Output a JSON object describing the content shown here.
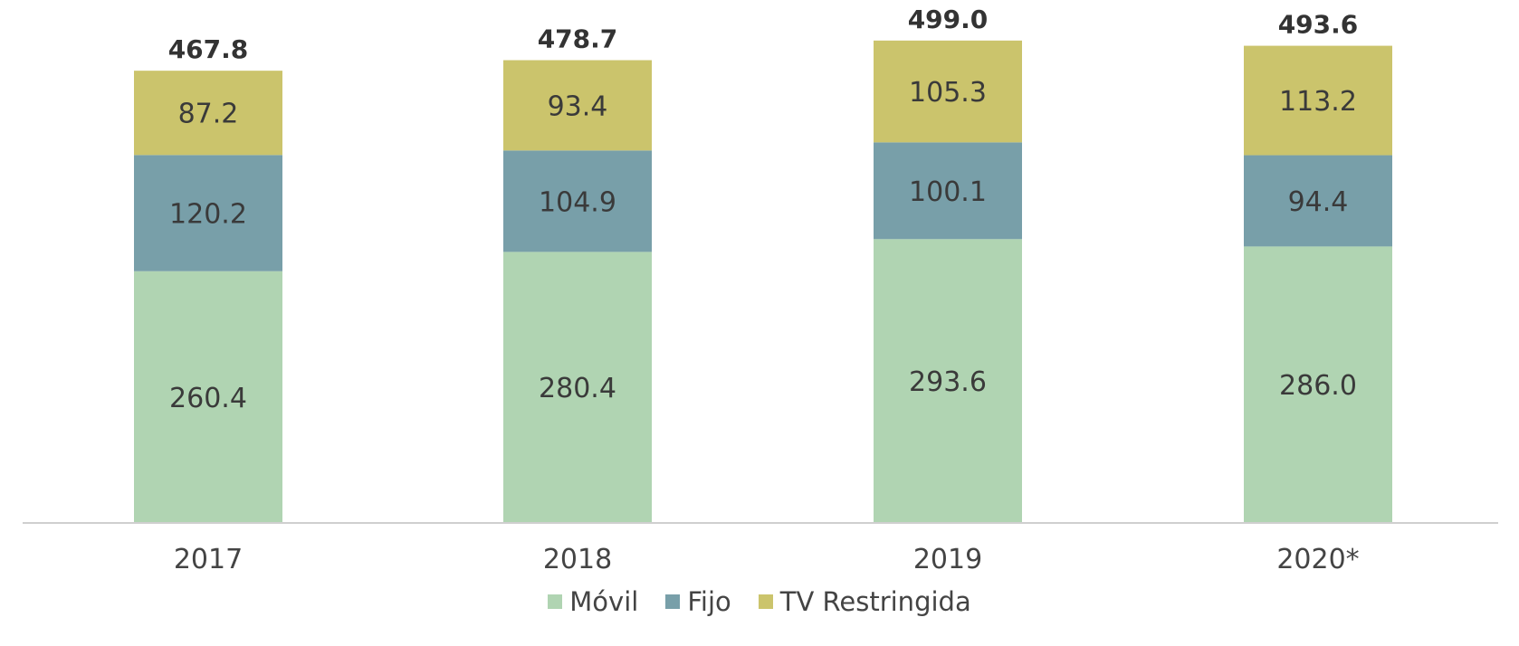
{
  "chart_data": {
    "type": "bar",
    "stacked": true,
    "categories": [
      "2017",
      "2018",
      "2019",
      "2020*"
    ],
    "series": [
      {
        "name": "Móvil",
        "color": "#b0d4b2",
        "values": [
          260.4,
          280.4,
          293.6,
          286.0
        ],
        "labels": [
          "260.4",
          "280.4",
          "293.6",
          "286.0"
        ]
      },
      {
        "name": "Fijo",
        "color": "#789fa9",
        "values": [
          120.2,
          104.9,
          100.1,
          94.4
        ],
        "labels": [
          "120.2",
          "104.9",
          "100.1",
          "94.4"
        ]
      },
      {
        "name": "TV Restringida",
        "color": "#cbc46c",
        "values": [
          87.2,
          93.4,
          105.3,
          113.2
        ],
        "labels": [
          "87.2",
          "93.4",
          "105.3",
          "113.2"
        ]
      }
    ],
    "totals": [
      467.8,
      478.7,
      499.0,
      493.6
    ],
    "total_labels": [
      "467.8",
      "478.7",
      "499.0",
      "493.6"
    ],
    "ylim": [
      0,
      500
    ],
    "grid": false,
    "legend_position": "bottom"
  }
}
